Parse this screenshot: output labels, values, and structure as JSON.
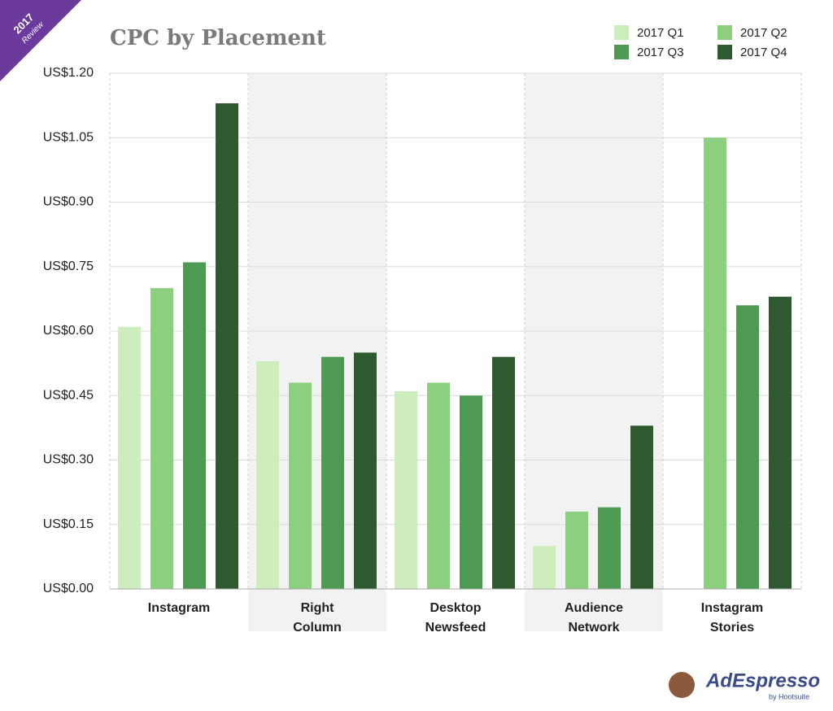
{
  "badge": {
    "year": "2017",
    "text": "Review"
  },
  "logo": {
    "name": "AdEspresso",
    "by": "by Hootsuite"
  },
  "chart_data": {
    "type": "bar",
    "title": "CPC by Placement",
    "categories": [
      "Instagram",
      "Right Column",
      "Desktop Newsfeed",
      "Audience Network",
      "Instagram Stories"
    ],
    "series": [
      {
        "name": "2017 Q1",
        "color": "#cdeebc",
        "values": [
          0.61,
          0.53,
          0.46,
          0.1,
          null
        ]
      },
      {
        "name": "2017 Q2",
        "color": "#8ccf7e",
        "values": [
          0.7,
          0.48,
          0.48,
          0.18,
          1.05
        ]
      },
      {
        "name": "2017 Q3",
        "color": "#4e9a52",
        "values": [
          0.76,
          0.54,
          0.45,
          0.19,
          0.66
        ]
      },
      {
        "name": "2017 Q4",
        "color": "#2f5a2f",
        "values": [
          1.13,
          0.55,
          0.54,
          0.38,
          0.68
        ]
      }
    ],
    "ylim": [
      0,
      1.2
    ],
    "yticks": [
      {
        "value": 0,
        "label": "US$0.00"
      },
      {
        "value": 0.15,
        "label": "US$0.15"
      },
      {
        "value": 0.3,
        "label": "US$0.30"
      },
      {
        "value": 0.45,
        "label": "US$0.45"
      },
      {
        "value": 0.6,
        "label": "US$0.60"
      },
      {
        "value": 0.75,
        "label": "US$0.75"
      },
      {
        "value": 0.9,
        "label": "US$0.90"
      },
      {
        "value": 1.05,
        "label": "US$1.05"
      },
      {
        "value": 1.2,
        "label": "US$1.20"
      }
    ],
    "grid": true,
    "legend": "top-right"
  }
}
